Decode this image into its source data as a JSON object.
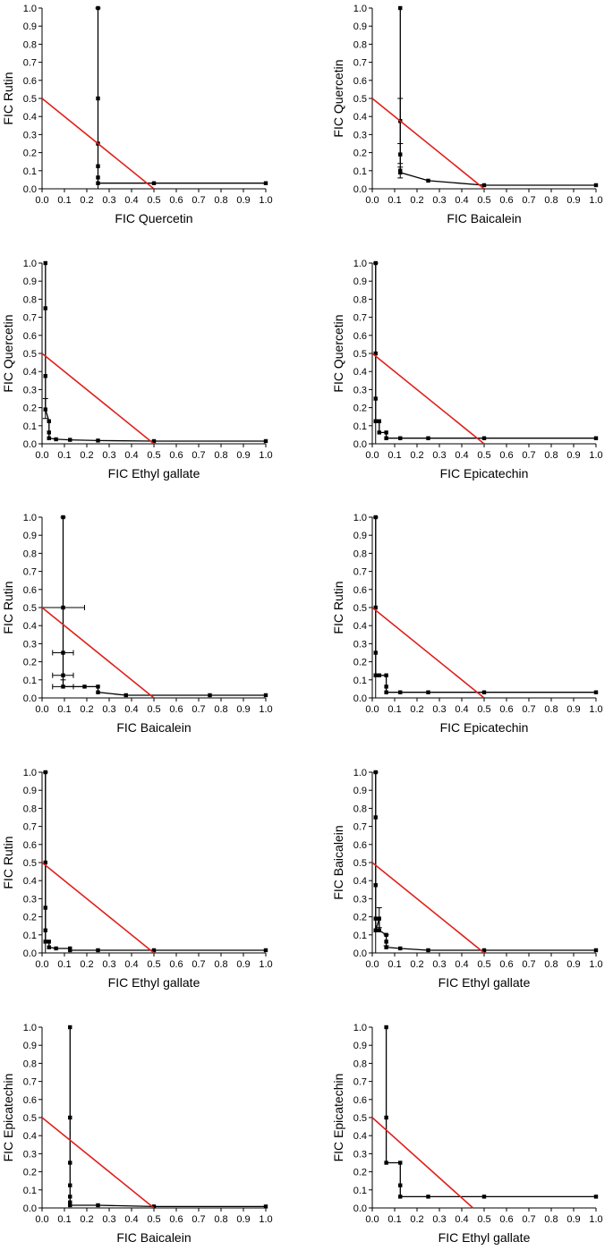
{
  "chart_data": [
    {
      "type": "line",
      "xlabel": "FIC Quercetin",
      "ylabel": "FIC Rutin",
      "xlim": [
        0,
        1
      ],
      "ylim": [
        0,
        1
      ],
      "xticks": [
        "0.0",
        "0.1",
        "0.2",
        "0.3",
        "0.4",
        "0.5",
        "0.6",
        "0.7",
        "0.8",
        "0.9",
        "1.0"
      ],
      "yticks": [
        "0.0",
        "0.1",
        "0.2",
        "0.3",
        "0.4",
        "0.5",
        "0.6",
        "0.7",
        "0.8",
        "0.9",
        "1.0"
      ],
      "series": [
        {
          "x": [
            0.25,
            0.25,
            0.25,
            0.25,
            0.25,
            0.25,
            0.5,
            1.0
          ],
          "y": [
            1.0,
            0.5,
            0.25,
            0.125,
            0.0625,
            0.031,
            0.031,
            0.031
          ],
          "color": "#000000"
        },
        {
          "x": [
            0,
            0.5
          ],
          "y": [
            0.5,
            0.0
          ],
          "color": "#e0201b"
        }
      ],
      "errorbars": [
        {
          "x": 0.25,
          "y": 0.5,
          "ylow": 0.0,
          "yhigh": 1.0
        }
      ]
    },
    {
      "type": "line",
      "xlabel": "FIC Baicalein",
      "ylabel": "FIC Quercetin",
      "xlim": [
        0,
        1
      ],
      "ylim": [
        0,
        1
      ],
      "xticks": [
        "0.0",
        "0.1",
        "0.2",
        "0.3",
        "0.4",
        "0.5",
        "0.6",
        "0.7",
        "0.8",
        "0.9",
        "1.0"
      ],
      "yticks": [
        "0.0",
        "0.1",
        "0.2",
        "0.3",
        "0.4",
        "0.5",
        "0.6",
        "0.7",
        "0.8",
        "0.9",
        "1.0"
      ],
      "series": [
        {
          "x": [
            0.125,
            0.125,
            0.125,
            0.125,
            0.125,
            0.25,
            0.5,
            1.0
          ],
          "y": [
            1.0,
            0.375,
            0.19,
            0.1,
            0.09,
            0.045,
            0.02,
            0.02
          ],
          "color": "#000000"
        },
        {
          "x": [
            0,
            0.5
          ],
          "y": [
            0.5,
            0.0
          ],
          "color": "#e0201b"
        }
      ],
      "errorbars": [
        {
          "x": 0.125,
          "y": 0.375,
          "ylow": 0.25,
          "yhigh": 0.5
        },
        {
          "x": 0.125,
          "y": 0.19,
          "ylow": 0.14,
          "yhigh": 0.25
        },
        {
          "x": 0.125,
          "y": 0.09,
          "ylow": 0.06,
          "yhigh": 0.12
        }
      ]
    },
    {
      "type": "line",
      "xlabel": "FIC Ethyl gallate",
      "ylabel": "FIC Quercetin",
      "xlim": [
        0,
        1
      ],
      "ylim": [
        0,
        1
      ],
      "xticks": [
        "0.0",
        "0.1",
        "0.2",
        "0.3",
        "0.4",
        "0.5",
        "0.6",
        "0.7",
        "0.8",
        "0.9",
        "1.0"
      ],
      "yticks": [
        "0.0",
        "0.1",
        "0.2",
        "0.3",
        "0.4",
        "0.5",
        "0.6",
        "0.7",
        "0.8",
        "0.9",
        "1.0"
      ],
      "series": [
        {
          "x": [
            0.015,
            0.015,
            0.015,
            0.015,
            0.031,
            0.031,
            0.031,
            0.0625,
            0.125,
            0.25,
            0.5,
            1.0
          ],
          "y": [
            1.0,
            0.75,
            0.375,
            0.19,
            0.125,
            0.0625,
            0.031,
            0.025,
            0.022,
            0.018,
            0.015,
            0.015
          ],
          "color": "#000000"
        },
        {
          "x": [
            0,
            0.5
          ],
          "y": [
            0.5,
            0.0
          ],
          "color": "#e0201b"
        }
      ],
      "errorbars": [
        {
          "x": 0.015,
          "y": 0.19,
          "ylow": 0.14,
          "yhigh": 0.25
        }
      ]
    },
    {
      "type": "line",
      "xlabel": "FIC Epicatechin",
      "ylabel": "FIC Quercetin",
      "xlim": [
        0,
        1
      ],
      "ylim": [
        0,
        1
      ],
      "xticks": [
        "0.0",
        "0.1",
        "0.2",
        "0.3",
        "0.4",
        "0.5",
        "0.6",
        "0.7",
        "0.8",
        "0.9",
        "1.0"
      ],
      "yticks": [
        "0.0",
        "0.1",
        "0.2",
        "0.3",
        "0.4",
        "0.5",
        "0.6",
        "0.7",
        "0.8",
        "0.9",
        "1.0"
      ],
      "series": [
        {
          "x": [
            0.015,
            0.015,
            0.015,
            0.015,
            0.031,
            0.031,
            0.0625,
            0.0625,
            0.125,
            0.25,
            0.5,
            1.0
          ],
          "y": [
            1.0,
            0.5,
            0.25,
            0.125,
            0.125,
            0.0625,
            0.0625,
            0.031,
            0.031,
            0.031,
            0.031,
            0.031
          ],
          "color": "#000000"
        },
        {
          "x": [
            0,
            0.5
          ],
          "y": [
            0.5,
            0.0
          ],
          "color": "#e0201b"
        }
      ],
      "errorbars": [
        {
          "x": 0.015,
          "y": 0.5,
          "ylow": 0.0,
          "yhigh": 1.0
        }
      ]
    },
    {
      "type": "line",
      "xlabel": "FIC Baicalein",
      "ylabel": "FIC Rutin",
      "xlim": [
        0,
        1
      ],
      "ylim": [
        0,
        1
      ],
      "xticks": [
        "0.0",
        "0.1",
        "0.2",
        "0.3",
        "0.4",
        "0.5",
        "0.6",
        "0.7",
        "0.8",
        "0.9",
        "1.0"
      ],
      "yticks": [
        "0.0",
        "0.1",
        "0.2",
        "0.3",
        "0.4",
        "0.5",
        "0.6",
        "0.7",
        "0.8",
        "0.9",
        "1.0"
      ],
      "series": [
        {
          "x": [
            0.094,
            0.094,
            0.094,
            0.094,
            0.094,
            0.19,
            0.25,
            0.25,
            0.375,
            0.75,
            1.0
          ],
          "y": [
            1.0,
            0.5,
            0.25,
            0.125,
            0.0625,
            0.0625,
            0.0625,
            0.031,
            0.015,
            0.015,
            0.015
          ],
          "color": "#000000"
        },
        {
          "x": [
            0,
            0.5
          ],
          "y": [
            0.5,
            0.0
          ],
          "color": "#e0201b"
        }
      ],
      "errorbars": [
        {
          "x": 0.094,
          "y": 0.5,
          "xlow": 0.0,
          "xhigh": 0.19
        },
        {
          "x": 0.094,
          "y": 0.25,
          "xlow": 0.047,
          "xhigh": 0.14
        },
        {
          "x": 0.094,
          "y": 0.125,
          "xlow": 0.047,
          "xhigh": 0.14
        },
        {
          "x": 0.094,
          "y": 0.0625,
          "xlow": 0.047,
          "xhigh": 0.14
        },
        {
          "x": 0.094,
          "y": 0.55,
          "ylow": 0.1,
          "yhigh": 1.0
        }
      ]
    },
    {
      "type": "line",
      "xlabel": "FIC Epicatechin",
      "ylabel": "FIC Rutin",
      "xlim": [
        0,
        1
      ],
      "ylim": [
        0,
        1
      ],
      "xticks": [
        "0.0",
        "0.1",
        "0.2",
        "0.3",
        "0.4",
        "0.5",
        "0.6",
        "0.7",
        "0.8",
        "0.9",
        "1.0"
      ],
      "yticks": [
        "0.0",
        "0.1",
        "0.2",
        "0.3",
        "0.4",
        "0.5",
        "0.6",
        "0.7",
        "0.8",
        "0.9",
        "1.0"
      ],
      "series": [
        {
          "x": [
            0.015,
            0.015,
            0.015,
            0.015,
            0.031,
            0.0625,
            0.0625,
            0.0625,
            0.125,
            0.25,
            0.5,
            1.0
          ],
          "y": [
            1.0,
            0.5,
            0.25,
            0.125,
            0.125,
            0.125,
            0.0625,
            0.031,
            0.031,
            0.031,
            0.031,
            0.031
          ],
          "color": "#000000"
        },
        {
          "x": [
            0,
            0.5
          ],
          "y": [
            0.5,
            0.0
          ],
          "color": "#e0201b"
        }
      ],
      "errorbars": [
        {
          "x": 0.015,
          "y": 0.5,
          "ylow": 0.0,
          "yhigh": 1.0
        }
      ]
    },
    {
      "type": "line",
      "xlabel": "FIC Ethyl gallate",
      "ylabel": "FIC Rutin",
      "xlim": [
        0,
        1
      ],
      "ylim": [
        0,
        1
      ],
      "xticks": [
        "0.0",
        "0.1",
        "0.2",
        "0.3",
        "0.4",
        "0.5",
        "0.6",
        "0.7",
        "0.8",
        "0.9",
        "1.0"
      ],
      "yticks": [
        "0.0",
        "0.1",
        "0.2",
        "0.3",
        "0.4",
        "0.5",
        "0.6",
        "0.7",
        "0.8",
        "0.9",
        "1.0"
      ],
      "series": [
        {
          "x": [
            0.015,
            0.015,
            0.015,
            0.015,
            0.015,
            0.031,
            0.031,
            0.0625,
            0.125,
            0.125,
            0.25,
            0.5,
            1.0
          ],
          "y": [
            1.0,
            0.5,
            0.25,
            0.125,
            0.0625,
            0.0625,
            0.031,
            0.025,
            0.025,
            0.015,
            0.015,
            0.015,
            0.015
          ],
          "color": "#000000"
        },
        {
          "x": [
            0,
            0.5
          ],
          "y": [
            0.5,
            0.0
          ],
          "color": "#e0201b"
        }
      ],
      "errorbars": [
        {
          "x": 0.015,
          "y": 0.5,
          "ylow": 0.0,
          "yhigh": 1.0
        }
      ]
    },
    {
      "type": "line",
      "xlabel": "FIC Ethyl gallate",
      "ylabel": "FIC Baicalein",
      "xlim": [
        0,
        1
      ],
      "ylim": [
        0,
        1
      ],
      "xticks": [
        "0.0",
        "0.1",
        "0.2",
        "0.3",
        "0.4",
        "0.5",
        "0.6",
        "0.7",
        "0.8",
        "0.9",
        "1.0"
      ],
      "yticks": [
        "0.0",
        "0.1",
        "0.2",
        "0.3",
        "0.4",
        "0.5",
        "0.6",
        "0.7",
        "0.8",
        "0.9",
        "1.0"
      ],
      "series": [
        {
          "x": [
            0.015,
            0.015,
            0.015,
            0.015,
            0.015,
            0.031,
            0.031,
            0.0625,
            0.0625,
            0.0625,
            0.125,
            0.25,
            0.5,
            1.0
          ],
          "y": [
            1.0,
            0.75,
            0.375,
            0.19,
            0.125,
            0.19,
            0.125,
            0.1,
            0.0625,
            0.031,
            0.025,
            0.015,
            0.015,
            0.015
          ],
          "color": "#000000"
        },
        {
          "x": [
            0,
            0.5
          ],
          "y": [
            0.5,
            0.0
          ],
          "color": "#e0201b"
        }
      ],
      "errorbars": [
        {
          "x": 0.015,
          "y": 0.5,
          "ylow": 0.0,
          "yhigh": 1.0
        },
        {
          "x": 0.031,
          "y": 0.19,
          "ylow": 0.14,
          "yhigh": 0.25
        },
        {
          "x": 0.0625,
          "y": 0.0625,
          "ylow": 0.04,
          "yhigh": 0.1
        }
      ]
    },
    {
      "type": "line",
      "xlabel": "FIC Baicalein",
      "ylabel": "FIC Epicatechin",
      "xlim": [
        0,
        1
      ],
      "ylim": [
        0,
        1
      ],
      "xticks": [
        "0.0",
        "0.1",
        "0.2",
        "0.3",
        "0.4",
        "0.5",
        "0.6",
        "0.7",
        "0.8",
        "0.9",
        "1.0"
      ],
      "yticks": [
        "0.0",
        "0.1",
        "0.2",
        "0.3",
        "0.4",
        "0.5",
        "0.6",
        "0.7",
        "0.8",
        "0.9",
        "1.0"
      ],
      "series": [
        {
          "x": [
            0.125,
            0.125,
            0.125,
            0.125,
            0.125,
            0.125,
            0.125,
            0.25,
            0.5,
            1.0
          ],
          "y": [
            1.0,
            0.5,
            0.25,
            0.125,
            0.0625,
            0.031,
            0.015,
            0.015,
            0.008,
            0.008
          ],
          "color": "#000000"
        },
        {
          "x": [
            0,
            0.5
          ],
          "y": [
            0.5,
            0.0
          ],
          "color": "#e0201b"
        }
      ],
      "errorbars": []
    },
    {
      "type": "line",
      "xlabel": "FIC Ethyl gallate",
      "ylabel": "FIC Epicatechin",
      "xlim": [
        0,
        1
      ],
      "ylim": [
        0,
        1
      ],
      "xticks": [
        "0.0",
        "0.1",
        "0.2",
        "0.3",
        "0.4",
        "0.5",
        "0.6",
        "0.7",
        "0.8",
        "0.9",
        "1.0"
      ],
      "yticks": [
        "0.0",
        "0.1",
        "0.2",
        "0.3",
        "0.4",
        "0.5",
        "0.6",
        "0.7",
        "0.8",
        "0.9",
        "1.0"
      ],
      "series": [
        {
          "x": [
            0.0625,
            0.0625,
            0.0625,
            0.125,
            0.125,
            0.125,
            0.25,
            0.5,
            1.0
          ],
          "y": [
            1.0,
            0.5,
            0.25,
            0.25,
            0.125,
            0.0625,
            0.0625,
            0.0625,
            0.0625
          ],
          "color": "#000000"
        },
        {
          "x": [
            0,
            0.45
          ],
          "y": [
            0.5,
            0.0
          ],
          "color": "#e0201b"
        }
      ],
      "errorbars": []
    }
  ]
}
